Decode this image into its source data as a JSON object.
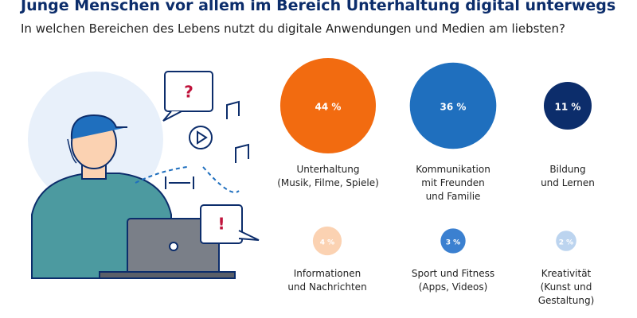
{
  "chart_data": {
    "type": "bubble",
    "title": "Junge Menschen vor allem im Bereich Unterhaltung digital unterwegs",
    "subtitle": "In welchen Bereichen des Lebens nutzt du digitale Anwendungen und Medien am liebsten?",
    "categories": [
      "Unterhaltung\n(Musik, Filme, Spiele)",
      "Kommunikation\nmit Freunden\nund Familie",
      "Bildung\nund Lernen",
      "Informationen\nund Nachrichten",
      "Sport und Fitness\n(Apps, Videos)",
      "Kreativität\n(Kunst und\nGestaltung)"
    ],
    "values": [
      44,
      36,
      11,
      4,
      3,
      2
    ],
    "value_labels": [
      "44 %",
      "36 %",
      "11 %",
      "4 %",
      "3 %",
      "2 %"
    ],
    "colors": [
      "#f26b10",
      "#1f6fbe",
      "#0c2d6b",
      "#fbd2b2",
      "#3b80d0",
      "#bcd4ef"
    ]
  },
  "illustration": {
    "question": "?",
    "exclamation": "!"
  }
}
